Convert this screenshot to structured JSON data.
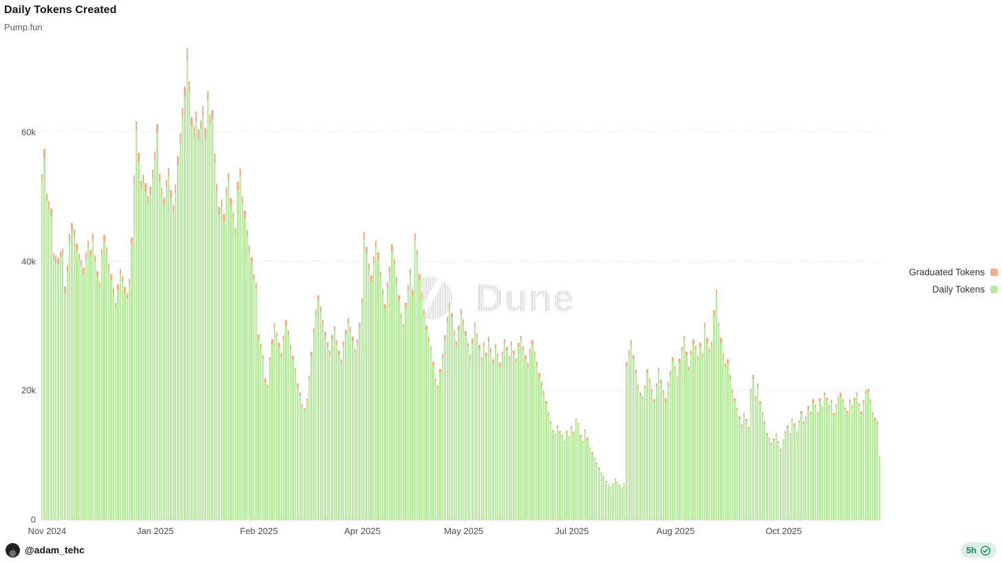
{
  "header": {
    "title": "Daily Tokens Created",
    "subtitle": "Pump.fun"
  },
  "watermark": {
    "text": "Dune"
  },
  "legend": [
    {
      "label": "Graduated Tokens",
      "color": "#f6ad85"
    },
    {
      "label": "Daily Tokens",
      "color": "#b2ef97"
    }
  ],
  "footer": {
    "handle": "@adam_tehc",
    "time_badge": "5h"
  },
  "colors": {
    "daily_bar": "#b2ef97",
    "graduated_bar": "#f6ad85",
    "badge_text": "#0f8a67",
    "badge_bg": "#ddf0e3"
  },
  "chart_data": {
    "type": "bar",
    "stacked": true,
    "title": "Daily Tokens Created",
    "subtitle": "Pump.fun",
    "xlabel": "",
    "ylabel": "",
    "unit": "thousands of tokens per day",
    "ylim": [
      0,
      73
    ],
    "grid": "horizontal",
    "legend_position": "right",
    "y_ticks": [
      {
        "value": 0,
        "label": "0"
      },
      {
        "value": 20,
        "label": "20k"
      },
      {
        "value": 40,
        "label": "40k"
      },
      {
        "value": 60,
        "label": "60k"
      }
    ],
    "x_ticks": [
      {
        "label": "Nov 2024",
        "day_index": 2
      },
      {
        "label": "Jan 2025",
        "day_index": 49
      },
      {
        "label": "Feb 2025",
        "day_index": 94
      },
      {
        "label": "Apr 2025",
        "day_index": 139
      },
      {
        "label": "May 2025",
        "day_index": 183
      },
      {
        "label": "Jul 2025",
        "day_index": 230
      },
      {
        "label": "Aug 2025",
        "day_index": 275
      },
      {
        "label": "Oct 2025",
        "day_index": 322
      }
    ],
    "series": [
      {
        "name": "Daily Tokens",
        "color": "#b2ef97",
        "values_k": [
          52.2,
          56.0,
          49.3,
          48.1,
          47.0,
          40.2,
          39.8,
          39.5,
          40.6,
          41.0,
          35.2,
          38.4,
          43.1,
          44.8,
          43.9,
          41.7,
          40.1,
          39.2,
          38.0,
          40.3,
          42.1,
          40.8,
          43.2,
          39.9,
          37.6,
          35.8,
          40.9,
          43.0,
          41.2,
          38.6,
          37.1,
          34.9,
          32.8,
          35.6,
          37.9,
          36.8,
          35.1,
          34.2,
          36.4,
          42.6,
          52.0,
          60.2,
          55.4,
          51.2,
          52.1,
          50.8,
          48.9,
          50.3,
          52.9,
          55.6,
          59.8,
          52.3,
          50.1,
          48.7,
          51.4,
          53.2,
          49.8,
          47.5,
          50.6,
          54.9,
          58.3,
          62.1,
          65.4,
          71.9,
          66.2,
          60.8,
          59.4,
          61.7,
          58.9,
          60.3,
          62.5,
          59.1,
          64.8,
          61.2,
          61.9,
          55.3,
          50.7,
          47.2,
          48.4,
          46.1,
          50.2,
          52.4,
          48.6,
          46.3,
          44.1,
          51.0,
          53.1,
          48.9,
          46.7,
          43.8,
          41.5,
          39.6,
          37.2,
          35.8,
          28.0,
          26.5,
          24.9,
          21.3,
          20.4,
          24.6,
          27.2,
          29.8,
          28.3,
          26.7,
          25.2,
          27.9,
          30.1,
          28.6,
          26.4,
          24.8,
          22.9,
          20.6,
          19.2,
          17.5,
          16.9,
          18.3,
          21.8,
          25.4,
          28.9,
          31.7,
          33.9,
          32.2,
          30.1,
          28.4,
          26.8,
          25.6,
          27.9,
          29.3,
          27.1,
          25.5,
          24.2,
          26.9,
          28.7,
          30.4,
          29.1,
          27.6,
          25.8,
          27.2,
          29.8,
          33.5,
          43.4,
          41.2,
          38.6,
          36.9,
          39.8,
          42.1,
          40.3,
          37.5,
          34.8,
          32.6,
          35.9,
          38.2,
          41.6,
          39.4,
          36.7,
          33.9,
          31.2,
          29.6,
          32.8,
          35.4,
          37.9,
          34.6,
          43.2,
          40.8,
          37.1,
          34.3,
          31.7,
          29.4,
          27.6,
          26.2,
          23.8,
          21.4,
          20.3,
          22.7,
          25.1,
          27.9,
          30.6,
          32.8,
          31.2,
          28.6,
          26.9,
          29.4,
          31.8,
          30.2,
          28.5,
          26.7,
          24.9,
          27.3,
          29.8,
          28.1,
          26.4,
          24.6,
          26.8,
          25.3,
          27.6,
          25.9,
          24.2,
          26.5,
          25.1,
          23.7,
          25.4,
          27.2,
          26.1,
          24.8,
          26.9,
          25.6,
          24.3,
          26.7,
          27.8,
          26.2,
          24.9,
          23.6,
          25.8,
          27.1,
          25.4,
          23.9,
          22.1,
          20.8,
          19.4,
          17.9,
          16.2,
          14.8,
          13.6,
          12.9,
          14.2,
          13.5,
          12.8,
          11.9,
          13.4,
          12.6,
          14.1,
          13.2,
          15.3,
          14.6,
          12.8,
          11.9,
          13.7,
          12.4,
          10.9,
          10.1,
          9.4,
          8.6,
          7.9,
          7.2,
          6.5,
          5.9,
          5.4,
          5.1,
          5.6,
          6.2,
          5.8,
          5.3,
          4.9,
          5.5,
          23.8,
          25.6,
          27.1,
          24.9,
          22.6,
          20.4,
          19.2,
          18.6,
          20.3,
          22.7,
          21.4,
          19.8,
          18.2,
          20.6,
          22.9,
          21.1,
          19.5,
          18.3,
          20.8,
          22.4,
          24.6,
          23.2,
          21.7,
          24.3,
          26.1,
          27.8,
          25.4,
          23.1,
          25.6,
          27.2,
          26.3,
          24.8,
          26.7,
          25.2,
          29.8,
          27.4,
          25.9,
          26.8,
          31.6,
          34.7,
          29.8,
          27.4,
          25.1,
          23.6,
          24.2,
          21.9,
          19.7,
          18.3,
          16.9,
          15.6,
          14.3,
          16.1,
          15.2,
          14.0,
          19.8,
          21.9,
          18.7,
          20.6,
          17.9,
          16.2,
          14.8,
          13.1,
          12.4,
          11.6,
          12.3,
          13.0,
          11.8,
          10.7,
          12.1,
          13.4,
          14.2,
          13.1,
          15.3,
          14.5,
          13.2,
          15.0,
          16.4,
          14.8,
          15.6,
          17.2,
          16.3,
          18.1,
          17.4,
          16.2,
          18.3,
          17.1,
          19.2,
          18.4,
          17.3,
          18.0,
          16.1,
          17.5,
          18.6,
          19.1,
          18.2,
          17.0,
          16.4,
          18.1,
          17.3,
          18.4,
          19.2,
          17.6,
          16.3,
          18.0,
          19.5,
          19.8,
          18.1,
          16.2,
          15.4,
          14.8,
          9.6
        ]
      },
      {
        "name": "Graduated Tokens",
        "color": "#f6ad85",
        "values_k": [
          1.3,
          1.4,
          1.2,
          1.2,
          1.2,
          1.0,
          1.0,
          1.0,
          1.0,
          1.0,
          0.9,
          1.0,
          1.1,
          1.1,
          1.1,
          1.0,
          1.0,
          1.0,
          1.0,
          1.0,
          1.1,
          1.0,
          1.1,
          1.0,
          0.9,
          0.9,
          1.0,
          1.1,
          1.0,
          1.0,
          0.9,
          0.9,
          0.8,
          0.9,
          0.9,
          0.9,
          0.9,
          0.9,
          0.9,
          1.1,
          1.3,
          1.5,
          1.4,
          1.3,
          1.3,
          1.3,
          1.2,
          1.3,
          1.3,
          1.4,
          1.5,
          1.3,
          1.3,
          1.2,
          1.3,
          1.3,
          1.2,
          1.2,
          1.3,
          1.4,
          1.5,
          1.6,
          1.6,
          1.8,
          1.7,
          1.5,
          1.5,
          1.5,
          1.5,
          1.5,
          1.6,
          1.5,
          1.6,
          1.5,
          1.5,
          1.4,
          1.3,
          1.2,
          1.2,
          1.2,
          1.3,
          1.3,
          1.2,
          1.2,
          1.1,
          1.3,
          1.3,
          1.2,
          1.2,
          1.1,
          1.0,
          1.0,
          0.9,
          0.9,
          0.7,
          0.7,
          0.6,
          0.5,
          0.5,
          0.6,
          0.7,
          0.7,
          0.7,
          0.7,
          0.6,
          0.7,
          0.8,
          0.7,
          0.7,
          0.6,
          0.6,
          0.5,
          0.5,
          0.4,
          0.4,
          0.5,
          0.5,
          0.6,
          0.7,
          0.8,
          0.8,
          0.8,
          0.8,
          0.7,
          0.7,
          0.6,
          0.7,
          0.7,
          0.7,
          0.6,
          0.6,
          0.7,
          0.7,
          0.8,
          0.7,
          0.7,
          0.6,
          0.7,
          0.7,
          0.8,
          1.1,
          1.0,
          1.0,
          0.9,
          1.0,
          1.1,
          1.0,
          0.9,
          0.9,
          0.8,
          0.9,
          1.0,
          1.0,
          1.0,
          0.9,
          0.8,
          0.8,
          0.7,
          0.8,
          0.9,
          0.9,
          0.9,
          1.1,
          1.0,
          0.9,
          0.9,
          0.8,
          0.7,
          0.7,
          0.7,
          0.6,
          0.5,
          0.5,
          0.6,
          0.6,
          0.7,
          0.8,
          0.8,
          0.8,
          0.7,
          0.7,
          0.7,
          0.8,
          0.8,
          0.7,
          0.7,
          0.6,
          0.7,
          0.7,
          0.7,
          0.7,
          0.6,
          0.7,
          0.6,
          0.7,
          0.6,
          0.6,
          0.7,
          0.6,
          0.6,
          0.6,
          0.7,
          0.7,
          0.6,
          0.7,
          0.6,
          0.6,
          0.7,
          0.7,
          0.7,
          0.6,
          0.6,
          0.6,
          0.7,
          0.6,
          0.6,
          0.6,
          0.5,
          0.5,
          0.4,
          0.4,
          0.4,
          0.3,
          0.3,
          0.4,
          0.3,
          0.3,
          0.3,
          0.3,
          0.3,
          0.4,
          0.3,
          0.4,
          0.4,
          0.3,
          0.3,
          0.3,
          0.3,
          0.3,
          0.3,
          0.2,
          0.2,
          0.2,
          0.2,
          0.2,
          0.1,
          0.1,
          0.1,
          0.1,
          0.2,
          0.1,
          0.1,
          0.1,
          0.1,
          0.6,
          0.6,
          0.7,
          0.6,
          0.6,
          0.5,
          0.5,
          0.5,
          0.5,
          0.6,
          0.5,
          0.5,
          0.5,
          0.5,
          0.6,
          0.5,
          0.5,
          0.5,
          0.5,
          0.6,
          0.6,
          0.6,
          0.5,
          0.6,
          0.7,
          0.7,
          0.6,
          0.6,
          0.6,
          0.7,
          0.7,
          0.6,
          0.7,
          0.6,
          0.7,
          0.7,
          0.6,
          0.7,
          0.8,
          0.9,
          0.7,
          0.7,
          0.6,
          0.6,
          0.6,
          0.5,
          0.5,
          0.5,
          0.4,
          0.4,
          0.4,
          0.4,
          0.4,
          0.4,
          0.5,
          0.5,
          0.5,
          0.5,
          0.4,
          0.4,
          0.4,
          0.3,
          0.3,
          0.3,
          0.3,
          0.3,
          0.3,
          0.3,
          0.3,
          0.3,
          0.4,
          0.3,
          0.4,
          0.4,
          0.3,
          0.4,
          0.4,
          0.4,
          0.4,
          0.4,
          0.4,
          0.5,
          0.4,
          0.4,
          0.5,
          0.4,
          0.5,
          0.5,
          0.4,
          0.5,
          0.4,
          0.4,
          0.5,
          0.5,
          0.5,
          0.4,
          0.4,
          0.5,
          0.4,
          0.5,
          0.5,
          0.4,
          0.4,
          0.5,
          0.5,
          0.5,
          0.5,
          0.4,
          0.4,
          0.4,
          0.2
        ]
      }
    ]
  }
}
